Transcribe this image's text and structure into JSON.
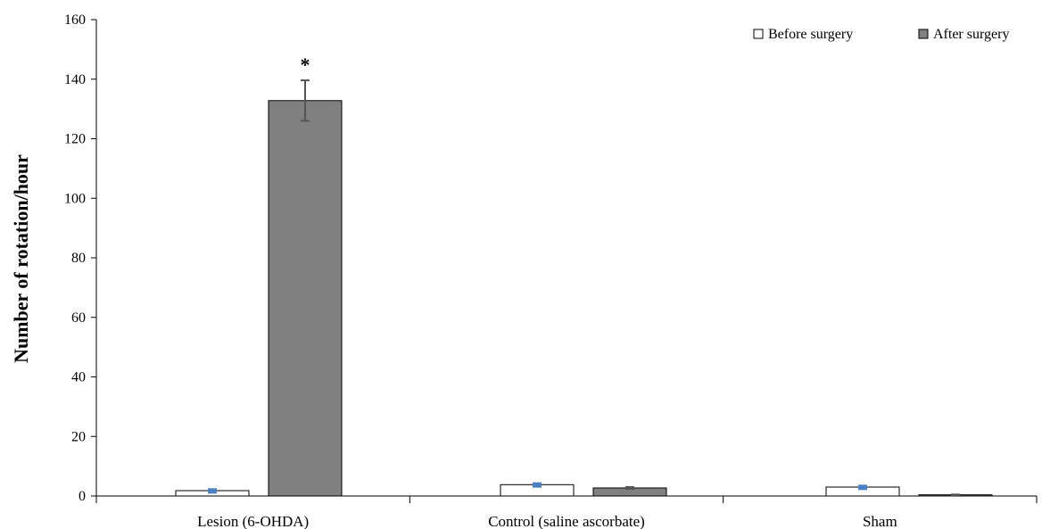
{
  "chart_data": {
    "type": "bar",
    "title": "",
    "xlabel": "",
    "ylabel": "Number of rotation/hour",
    "ylim": [
      0,
      160
    ],
    "yticks": [
      0,
      20,
      40,
      60,
      80,
      100,
      120,
      140,
      160
    ],
    "grid": false,
    "legend_position": "top-right",
    "categories": [
      "Lesion (6-OHDA)",
      "Control (saline ascorbate)",
      "Sham"
    ],
    "series": [
      {
        "name": "Before surgery",
        "values": [
          1.8,
          3.8,
          3.0
        ],
        "errors": [
          0.5,
          0.5,
          0.5
        ],
        "fill": "#ffffff",
        "stroke": "#000000",
        "error_color": "#4a7fc1"
      },
      {
        "name": "After surgery",
        "values": [
          132.8,
          2.7,
          0.4
        ],
        "errors": [
          6.8,
          0.3,
          0.1
        ],
        "fill": "#808080",
        "stroke": "#000000",
        "error_color": "#555555"
      }
    ],
    "annotations": [
      {
        "category_index": 0,
        "series_index": 1,
        "text": "*"
      }
    ]
  }
}
